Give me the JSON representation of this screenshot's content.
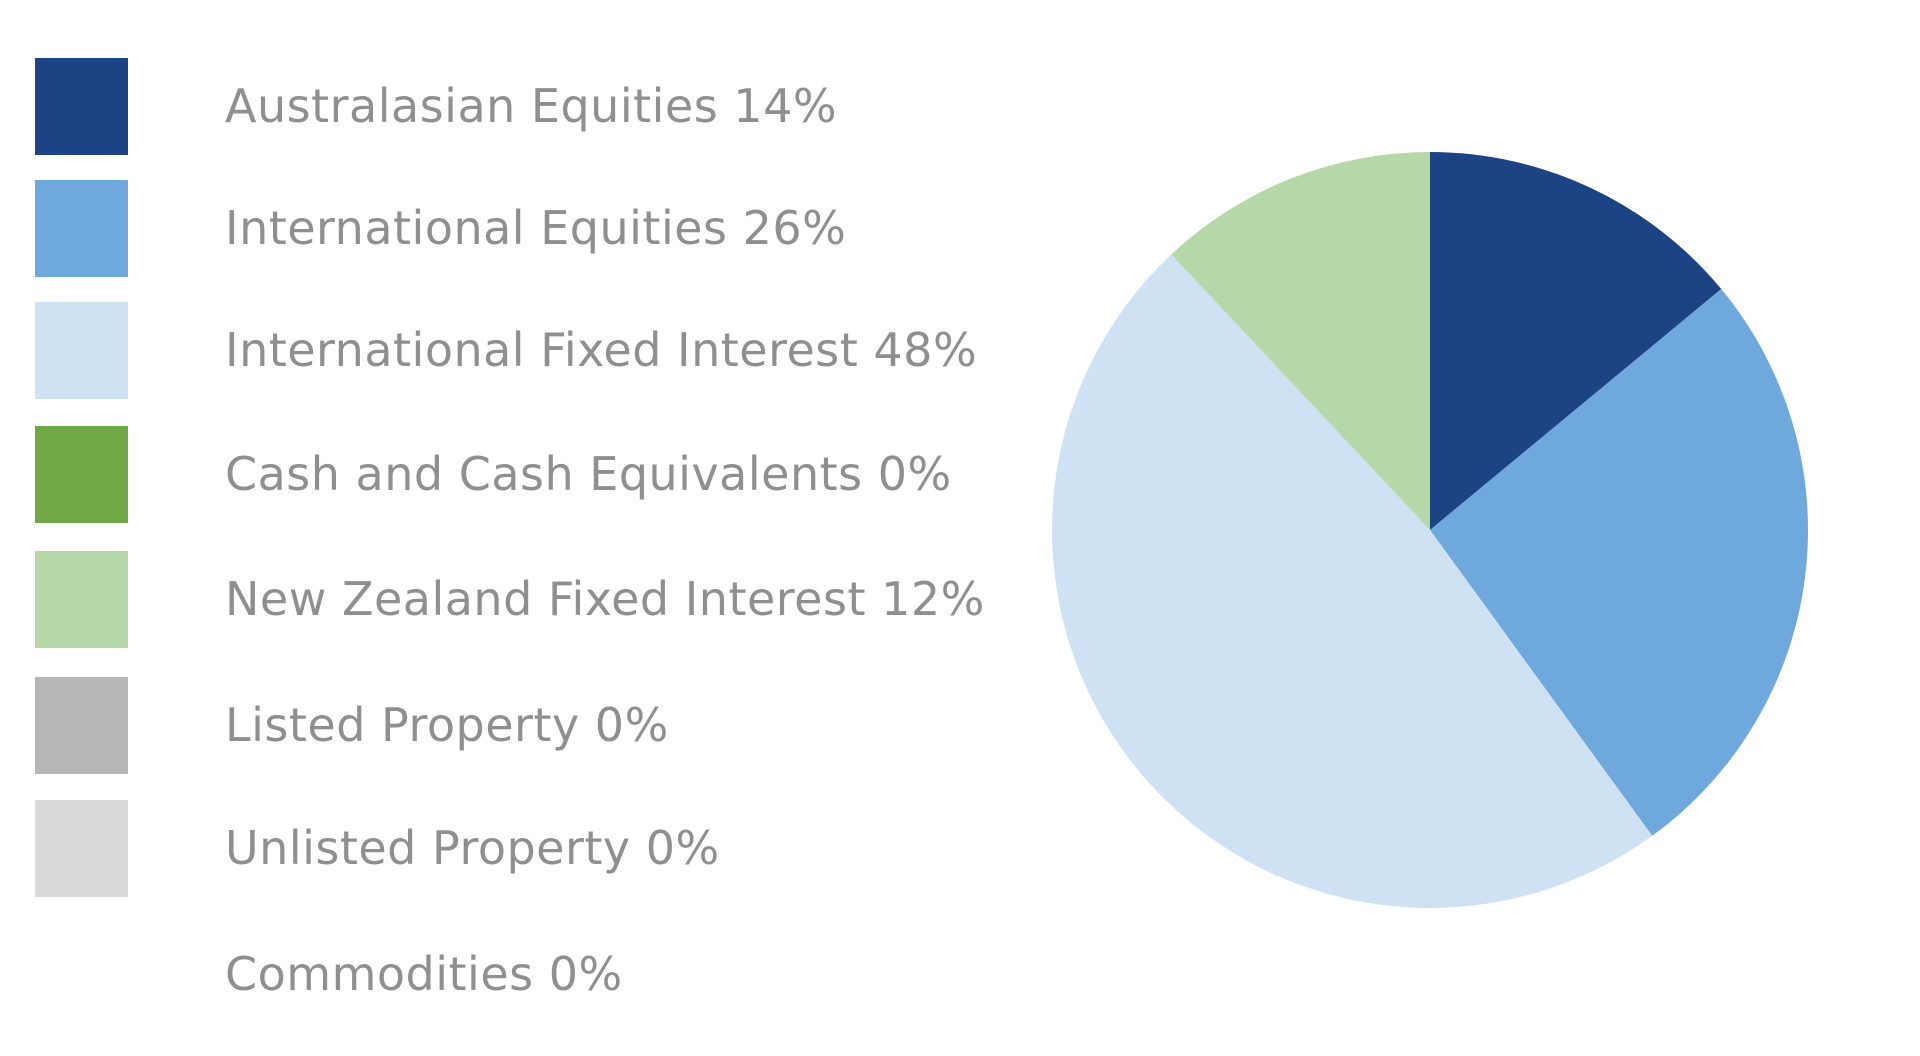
{
  "chart_data": {
    "type": "pie",
    "legend_position": "left",
    "slices": [
      {
        "label": "Australasian Equities",
        "value": 14,
        "display": "Australasian Equities 14%",
        "color": "#1c4384"
      },
      {
        "label": "International Equities",
        "value": 26,
        "display": "International Equities 26%",
        "color": "#6fa8dc"
      },
      {
        "label": "International Fixed Interest",
        "value": 48,
        "display": "International Fixed Interest 48%",
        "color": "#cfe2f3"
      },
      {
        "label": "Cash and Cash Equivalents",
        "value": 0,
        "display": "Cash and Cash Equivalents 0%",
        "color": "#70a845"
      },
      {
        "label": "New Zealand Fixed Interest",
        "value": 12,
        "display": "New Zealand Fixed Interest 12%",
        "color": "#b6d7a8"
      },
      {
        "label": "Listed Property",
        "value": 0,
        "display": "Listed Property 0%",
        "color": "#b7b7b7"
      },
      {
        "label": "Unlisted Property",
        "value": 0,
        "display": "Unlisted Property 0%",
        "color": "#d9d9d9"
      },
      {
        "label": "Commodities",
        "value": 0,
        "display": "Commodities 0%",
        "color": "#ffffff"
      }
    ]
  }
}
